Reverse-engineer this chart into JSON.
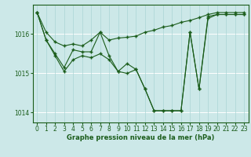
{
  "title": "Graphe pression niveau de la mer (hPa)",
  "background_color": "#cce8e8",
  "grid_color_h": "#ffffff",
  "grid_color_v": "#aad4d4",
  "line_color": "#1a5c1a",
  "xlim": [
    -0.5,
    23.5
  ],
  "ylim": [
    1013.75,
    1016.75
  ],
  "yticks": [
    1014,
    1015,
    1016
  ],
  "xticks": [
    0,
    1,
    2,
    3,
    4,
    5,
    6,
    7,
    8,
    9,
    10,
    11,
    12,
    13,
    14,
    15,
    16,
    17,
    18,
    19,
    20,
    21,
    22,
    23
  ],
  "upper": [
    1016.55,
    1016.05,
    1015.8,
    1015.7,
    1015.75,
    1015.7,
    1015.85,
    1016.05,
    1015.85,
    1015.9,
    1015.92,
    1015.95,
    1016.05,
    1016.1,
    1016.18,
    1016.22,
    1016.3,
    1016.35,
    1016.42,
    1016.5,
    1016.55,
    1016.55,
    1016.55,
    1016.55
  ],
  "middle": [
    1016.55,
    1015.85,
    1015.5,
    1015.15,
    1015.6,
    1015.55,
    1015.55,
    1016.05,
    1015.45,
    1015.05,
    1015.25,
    1015.1,
    1014.6,
    1014.05,
    1014.05,
    1014.05,
    1014.05,
    1016.05,
    1014.6,
    1016.45,
    1016.5,
    1016.5,
    1016.5,
    1016.5
  ],
  "lower": [
    1016.55,
    1015.85,
    1015.45,
    1015.05,
    1015.35,
    1015.45,
    1015.4,
    1015.5,
    1015.35,
    1015.05,
    1015.0,
    1015.1,
    1014.6,
    1014.05,
    1014.05,
    1014.05,
    1014.05,
    1016.05,
    1014.6,
    1016.4,
    1016.5,
    1016.5,
    1016.5,
    1016.5
  ],
  "marker": "+",
  "markersize": 3,
  "linewidth": 0.8,
  "tick_fontsize": 5.5,
  "label_fontsize": 6.0
}
